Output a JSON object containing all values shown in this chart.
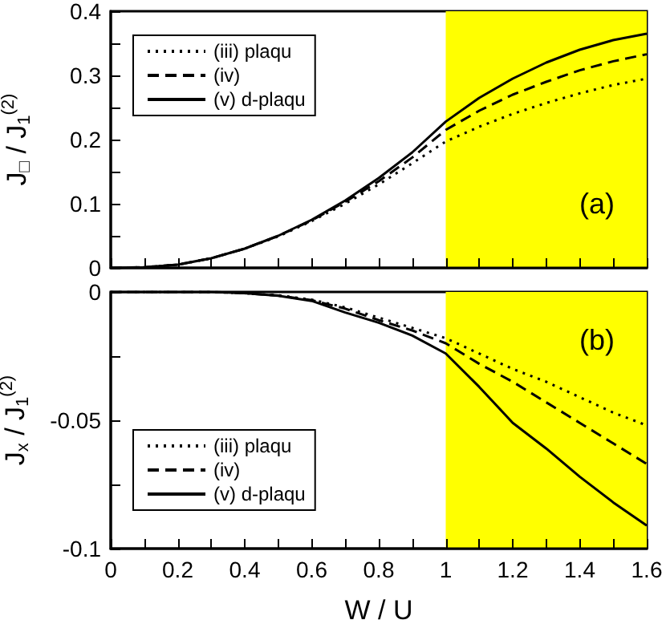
{
  "chart_data": [
    {
      "type": "line",
      "ylabel": "J$_{□}$ / J$_{1}$$^{(2)}$",
      "annotations": [
        "(a)"
      ],
      "tick_labels": "y",
      "legend": "top left",
      "grid": false,
      "x": [
        0,
        0.1,
        0.2,
        0.3,
        0.4,
        0.5,
        0.6,
        0.7,
        0.8,
        0.9,
        1.0,
        1.1,
        1.2,
        1.3,
        1.4,
        1.5,
        1.6
      ],
      "series": [
        {
          "name": "(iii) plaqu",
          "color": "#000000",
          "line_style": "dotted",
          "values": [
            0,
            0.001,
            0.005,
            0.015,
            0.03,
            0.049,
            0.073,
            0.1,
            0.13,
            0.163,
            0.197,
            0.22,
            0.24,
            0.257,
            0.272,
            0.285,
            0.295
          ]
        },
        {
          "name": "(iv)",
          "color": "#000000",
          "line_style": "dashed",
          "values": [
            0,
            0.001,
            0.005,
            0.015,
            0.03,
            0.05,
            0.074,
            0.103,
            0.135,
            0.172,
            0.215,
            0.245,
            0.27,
            0.29,
            0.308,
            0.322,
            0.333
          ]
        },
        {
          "name": "(v) d-plaqu",
          "color": "#000000",
          "line_style": "solid",
          "values": [
            0,
            0.001,
            0.005,
            0.015,
            0.03,
            0.05,
            0.075,
            0.105,
            0.14,
            0.18,
            0.228,
            0.265,
            0.295,
            0.32,
            0.34,
            0.355,
            0.365
          ]
        }
      ],
      "xlim": [
        0,
        1.6
      ],
      "ylim": [
        0,
        0.4
      ],
      "xticks": [
        0,
        {
          "value": 0.1,
          "label": null
        },
        0.2,
        {
          "value": 0.3,
          "label": null
        },
        0.4,
        {
          "value": 0.5,
          "label": null
        },
        0.6,
        {
          "value": 0.7,
          "label": null
        },
        0.8,
        {
          "value": 0.9,
          "label": null
        },
        1,
        {
          "value": 1.1,
          "label": null
        },
        1.2,
        {
          "value": 1.3,
          "label": null
        },
        1.4,
        {
          "value": 1.5,
          "label": null
        },
        1.6
      ],
      "yticks": [
        0,
        {
          "value": 0.05,
          "label": null
        },
        0.1,
        {
          "value": 0.15,
          "label": null
        },
        0.2,
        {
          "value": 0.25,
          "label": null
        },
        0.3,
        {
          "value": 0.35,
          "label": null
        },
        0.4
      ],
      "bands": [
        {
          "axis": "x",
          "from": 1,
          "to": 1.6,
          "color": "#ffff00"
        }
      ]
    },
    {
      "type": "line",
      "xlabel": "W / U",
      "ylabel": "J$_{x}$ / J$_{1}$$^{(2)}$",
      "annotations": [
        "(b)"
      ],
      "legend": "bottom left",
      "grid": false,
      "x": [
        0,
        0.1,
        0.2,
        0.3,
        0.4,
        0.5,
        0.6,
        0.7,
        0.8,
        0.9,
        1.0,
        1.1,
        1.2,
        1.3,
        1.4,
        1.5,
        1.6
      ],
      "series": [
        {
          "name": "(iii) plaqu",
          "color": "#000000",
          "line_style": "dotted",
          "values": [
            0,
            0,
            0,
            0,
            -0.0005,
            -0.0013,
            -0.003,
            -0.006,
            -0.01,
            -0.014,
            -0.018,
            -0.024,
            -0.03,
            -0.035,
            -0.041,
            -0.047,
            -0.052
          ]
        },
        {
          "name": "(iv)",
          "color": "#000000",
          "line_style": "dashed",
          "values": [
            0,
            0,
            0,
            0,
            -0.0005,
            -0.0014,
            -0.0032,
            -0.0065,
            -0.011,
            -0.015,
            -0.02,
            -0.028,
            -0.035,
            -0.043,
            -0.051,
            -0.059,
            -0.067
          ]
        },
        {
          "name": "(v) d-plaqu",
          "color": "#000000",
          "line_style": "solid",
          "values": [
            0,
            0,
            0,
            0,
            -0.0005,
            -0.0015,
            -0.0035,
            -0.008,
            -0.012,
            -0.017,
            -0.024,
            -0.037,
            -0.051,
            -0.061,
            -0.072,
            -0.082,
            -0.091
          ]
        }
      ],
      "xlim": [
        0,
        1.6
      ],
      "ylim": [
        -0.1,
        0
      ],
      "xticks": [
        0,
        {
          "value": 0.1,
          "label": null
        },
        0.2,
        {
          "value": 0.3,
          "label": null
        },
        0.4,
        {
          "value": 0.5,
          "label": null
        },
        0.6,
        {
          "value": 0.7,
          "label": null
        },
        0.8,
        {
          "value": 0.9,
          "label": null
        },
        1,
        {
          "value": 1.1,
          "label": null
        },
        1.2,
        {
          "value": 1.3,
          "label": null
        },
        1.4,
        {
          "value": 1.5,
          "label": null
        },
        1.6
      ],
      "yticks": [
        -0.1,
        {
          "value": -0.075,
          "label": null
        },
        -0.05,
        {
          "value": -0.025,
          "label": null
        },
        0
      ],
      "bands": [
        {
          "axis": "x",
          "from": 1,
          "to": 1.6,
          "color": "#ffff00"
        }
      ]
    }
  ]
}
